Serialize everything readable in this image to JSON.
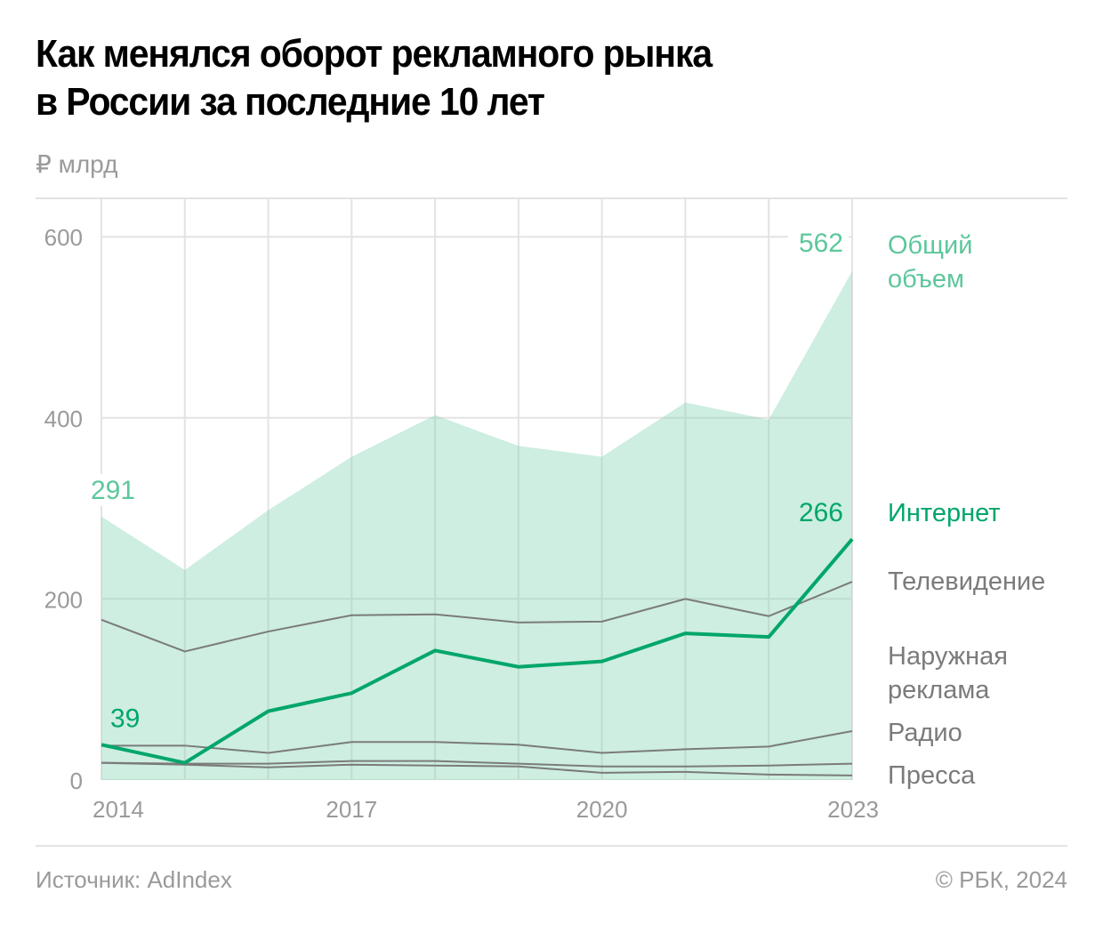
{
  "header": {
    "title_line1": "Как менялся оборот рекламного рынка",
    "title_line2": "в России за последние 10 лет",
    "unit": "₽ млрд"
  },
  "footer": {
    "source": "Источник: AdIndex",
    "credit": "© РБК, 2024"
  },
  "colors": {
    "total_fill": "#cdeee0",
    "total_text": "#5dc79b",
    "internet": "#00a66a",
    "other_lines": "#7b7b7b",
    "legend_gray": "#7b7b7b",
    "grid": "#e3e3e3",
    "grid_in_area": "#bfdccf"
  },
  "chart_data": {
    "type": "area",
    "title": "Как менялся оборот рекламного рынка в России за последние 10 лет",
    "ylabel": "₽ млрд",
    "xlabel": "",
    "x": [
      2014,
      2015,
      2016,
      2017,
      2018,
      2019,
      2020,
      2021,
      2022,
      2023
    ],
    "x_tick_labels": [
      "2014",
      "2017",
      "2020",
      "2023"
    ],
    "x_tick_values": [
      2014,
      2017,
      2020,
      2023
    ],
    "y_ticks": [
      0,
      200,
      400,
      600
    ],
    "ylim": [
      0,
      640
    ],
    "grid": true,
    "legend_placement": "right",
    "series": [
      {
        "name": "Общий объем",
        "legend_lines": [
          "Общий",
          "объем"
        ],
        "kind": "area",
        "values": [
          291,
          232,
          298,
          357,
          403,
          369,
          357,
          417,
          398,
          562
        ]
      },
      {
        "name": "Интернет",
        "legend_lines": [
          "Интернет"
        ],
        "kind": "line-bold",
        "values": [
          39,
          19,
          76,
          96,
          143,
          125,
          131,
          162,
          158,
          266
        ]
      },
      {
        "name": "Телевидение",
        "legend_lines": [
          "Телевидение"
        ],
        "kind": "line",
        "values": [
          177,
          142,
          164,
          182,
          183,
          174,
          175,
          200,
          181,
          219
        ]
      },
      {
        "name": "Наружная реклама",
        "legend_lines": [
          "Наружная",
          "реклама"
        ],
        "kind": "line",
        "values": [
          38,
          38,
          30,
          42,
          42,
          39,
          30,
          34,
          37,
          54
        ]
      },
      {
        "name": "Радио",
        "legend_lines": [
          "Радио"
        ],
        "kind": "line",
        "values": [
          19,
          18,
          18,
          21,
          21,
          18,
          15,
          15,
          16,
          18
        ]
      },
      {
        "name": "Пресса",
        "legend_lines": [
          "Пресса"
        ],
        "kind": "line",
        "values": [
          19,
          17,
          14,
          17,
          16,
          15,
          8,
          9,
          6,
          5
        ]
      }
    ],
    "annotations": [
      {
        "series": "Общий объем",
        "x": 2014,
        "text": "291"
      },
      {
        "series": "Общий объем",
        "x": 2023,
        "text": "562"
      },
      {
        "series": "Интернет",
        "x": 2014,
        "text": "39"
      },
      {
        "series": "Интернет",
        "x": 2023,
        "text": "266"
      }
    ]
  }
}
